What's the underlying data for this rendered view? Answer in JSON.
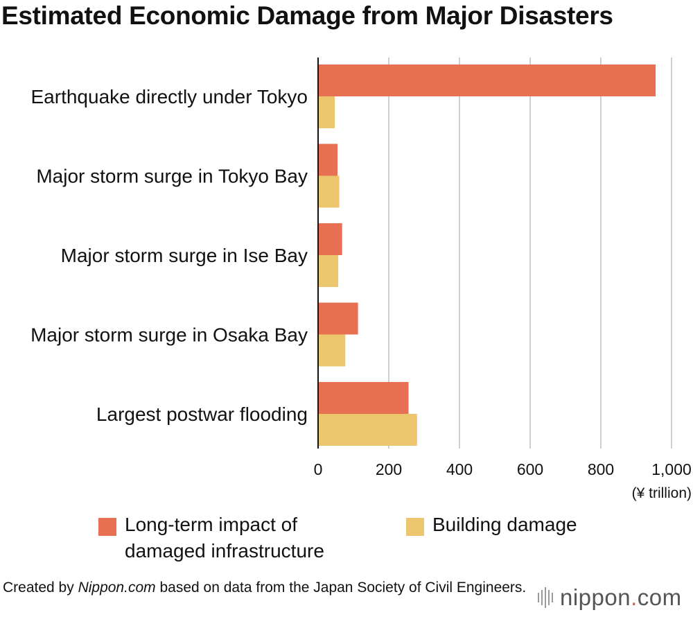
{
  "chart_data": {
    "type": "bar",
    "orientation": "horizontal",
    "title": "Estimated Economic Damage from Major Disasters",
    "categories": [
      "Earthquake directly under Tokyo",
      "Major storm surge in Tokyo Bay",
      "Major storm surge in Ise Bay",
      "Major storm surge in Osaka Bay",
      "Largest postwar flooding"
    ],
    "series": [
      {
        "name": "Long-term impact of damaged infrastructure",
        "name_lines": [
          "Long-term impact of",
          "damaged infrastructure"
        ],
        "color": "#E87052",
        "values": [
          955,
          55,
          68,
          113,
          256
        ]
      },
      {
        "name": "Building damage",
        "name_lines": [
          "Building damage"
        ],
        "color": "#EBC66C",
        "values": [
          47,
          60,
          57,
          77,
          280
        ]
      }
    ],
    "xlim": [
      0,
      1000
    ],
    "xticks": [
      0,
      200,
      400,
      600,
      800,
      1000
    ],
    "xtick_labels": [
      "0",
      "200",
      "400",
      "600",
      "800",
      "1,000"
    ],
    "xlabel": "(¥ trillion)",
    "grid": true
  },
  "credit": {
    "prefix": "Created by ",
    "source": "Nippon.com",
    "suffix": " based on data from the Japan Society of Civil Engineers."
  },
  "logo": {
    "text": "nippon.com",
    "main": "nippon",
    "dot": ".",
    "tld": "com",
    "dot_color": "#E25A3A"
  }
}
